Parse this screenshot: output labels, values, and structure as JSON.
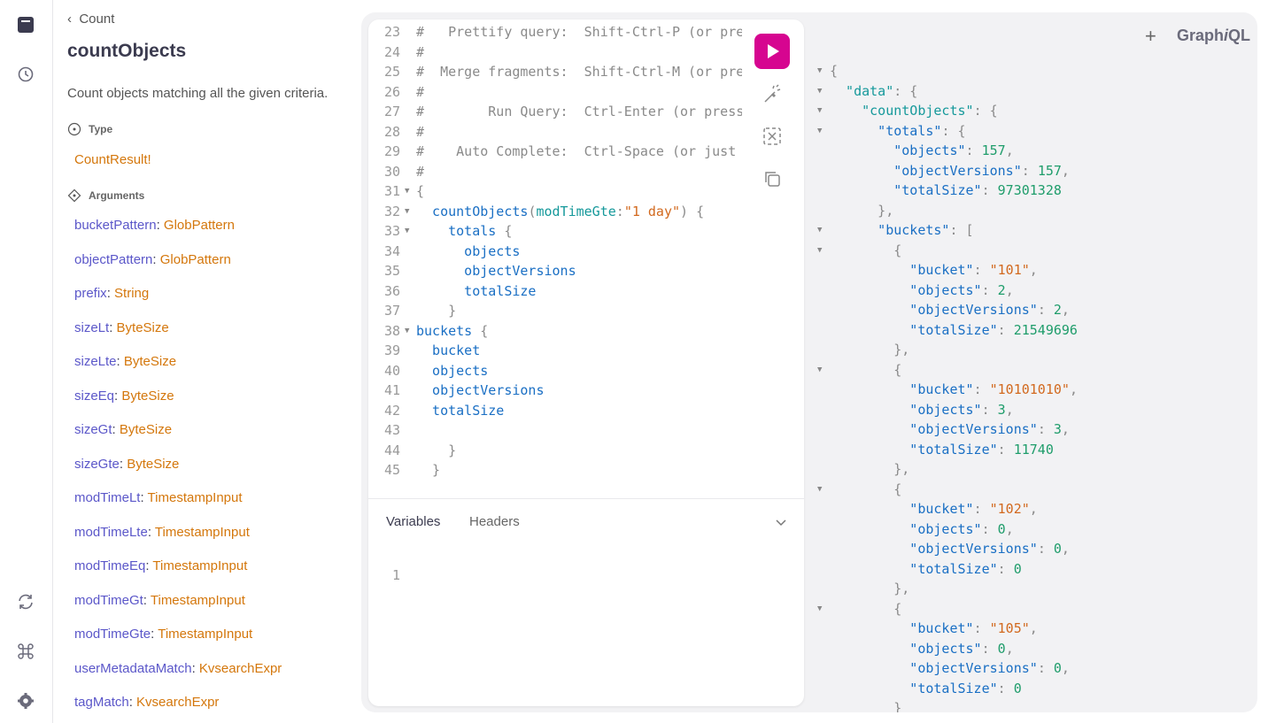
{
  "docs": {
    "back": "Count",
    "title": "countObjects",
    "description": "Count objects matching all the given criteria.",
    "type_heading": "Type",
    "type": "CountResult!",
    "arguments_heading": "Arguments",
    "arguments": [
      {
        "name": "bucketPattern",
        "type": "GlobPattern"
      },
      {
        "name": "objectPattern",
        "type": "GlobPattern"
      },
      {
        "name": "prefix",
        "type": "String"
      },
      {
        "name": "sizeLt",
        "type": "ByteSize"
      },
      {
        "name": "sizeLte",
        "type": "ByteSize"
      },
      {
        "name": "sizeEq",
        "type": "ByteSize"
      },
      {
        "name": "sizeGt",
        "type": "ByteSize"
      },
      {
        "name": "sizeGte",
        "type": "ByteSize"
      },
      {
        "name": "modTimeLt",
        "type": "TimestampInput"
      },
      {
        "name": "modTimeLte",
        "type": "TimestampInput"
      },
      {
        "name": "modTimeEq",
        "type": "TimestampInput"
      },
      {
        "name": "modTimeGt",
        "type": "TimestampInput"
      },
      {
        "name": "modTimeGte",
        "type": "TimestampInput"
      },
      {
        "name": "userMetadataMatch",
        "type": "KvsearchExpr"
      },
      {
        "name": "tagMatch",
        "type": "KvsearchExpr"
      }
    ]
  },
  "header": {
    "add": "+",
    "brand": [
      "Graph",
      "i",
      "QL"
    ]
  },
  "editor": {
    "lines": [
      {
        "number": 23,
        "fold": false,
        "tokens": [
          [
            "#   Prettify query:  Shift-Ctrl-P (or pre",
            "#8a8a8a"
          ]
        ]
      },
      {
        "number": 24,
        "fold": false,
        "tokens": [
          [
            "#",
            "#8a8a8a"
          ]
        ]
      },
      {
        "number": 25,
        "fold": false,
        "tokens": [
          [
            "#  Merge fragments:  Shift-Ctrl-M (or pre",
            "#8a8a8a"
          ]
        ]
      },
      {
        "number": 26,
        "fold": false,
        "tokens": [
          [
            "#",
            "#8a8a8a"
          ]
        ]
      },
      {
        "number": 27,
        "fold": false,
        "tokens": [
          [
            "#        Run Query:  Ctrl-Enter (or press",
            "#8a8a8a"
          ]
        ]
      },
      {
        "number": 28,
        "fold": false,
        "tokens": [
          [
            "#",
            "#8a8a8a"
          ]
        ]
      },
      {
        "number": 29,
        "fold": false,
        "tokens": [
          [
            "#    Auto Complete:  Ctrl-Space (or just",
            "#8a8a8a"
          ]
        ]
      },
      {
        "number": 30,
        "fold": false,
        "tokens": [
          [
            "#",
            "#8a8a8a"
          ]
        ]
      },
      {
        "number": 31,
        "fold": true,
        "tokens": [
          [
            "{",
            "#8a8a8a"
          ]
        ]
      },
      {
        "number": 32,
        "fold": true,
        "tokens": [
          [
            "  countObjects",
            "#1a6fc4"
          ],
          [
            "(",
            "#8a8a8a"
          ],
          [
            "modTimeGte",
            "#16999b"
          ],
          [
            ":",
            "#8a8a8a"
          ],
          [
            "\"1 day\"",
            "#d2691e"
          ],
          [
            ") {",
            "#8a8a8a"
          ]
        ]
      },
      {
        "number": 33,
        "fold": true,
        "tokens": [
          [
            "    totals",
            "#1a6fc4"
          ],
          [
            " {",
            "#8a8a8a"
          ]
        ]
      },
      {
        "number": 34,
        "fold": false,
        "tokens": [
          [
            "      objects",
            "#1a6fc4"
          ]
        ]
      },
      {
        "number": 35,
        "fold": false,
        "tokens": [
          [
            "      objectVersions",
            "#1a6fc4"
          ]
        ]
      },
      {
        "number": 36,
        "fold": false,
        "tokens": [
          [
            "      totalSize",
            "#1a6fc4"
          ]
        ]
      },
      {
        "number": 37,
        "fold": false,
        "tokens": [
          [
            "    }",
            "#8a8a8a"
          ]
        ]
      },
      {
        "number": 38,
        "fold": true,
        "tokens": [
          [
            "buckets",
            "#1a6fc4"
          ],
          [
            " {",
            "#8a8a8a"
          ]
        ]
      },
      {
        "number": 39,
        "fold": false,
        "tokens": [
          [
            "  bucket",
            "#1a6fc4"
          ]
        ]
      },
      {
        "number": 40,
        "fold": false,
        "tokens": [
          [
            "  objects",
            "#1a6fc4"
          ]
        ]
      },
      {
        "number": 41,
        "fold": false,
        "tokens": [
          [
            "  objectVersions",
            "#1a6fc4"
          ]
        ]
      },
      {
        "number": 42,
        "fold": false,
        "tokens": [
          [
            "  totalSize",
            "#1a6fc4"
          ]
        ]
      },
      {
        "number": 43,
        "fold": false,
        "tokens": []
      },
      {
        "number": 44,
        "fold": false,
        "tokens": [
          [
            "    }",
            "#8a8a8a"
          ]
        ]
      },
      {
        "number": 45,
        "fold": false,
        "tokens": [
          [
            "  }",
            "#8a8a8a"
          ]
        ]
      }
    ]
  },
  "variables": {
    "tabs": [
      "Variables",
      "Headers"
    ],
    "lines": [
      1
    ]
  },
  "result": {
    "lines": [
      {
        "fold": true,
        "tokens": [
          [
            "{",
            "#8a8a8a"
          ]
        ]
      },
      {
        "fold": true,
        "tokens": [
          [
            "  \"data\"",
            "#16999b"
          ],
          [
            ": {",
            "#8a8a8a"
          ]
        ]
      },
      {
        "fold": true,
        "tokens": [
          [
            "    \"countObjects\"",
            "#16999b"
          ],
          [
            ": {",
            "#8a8a8a"
          ]
        ]
      },
      {
        "fold": true,
        "tokens": [
          [
            "      \"totals\"",
            "#1a6fc4"
          ],
          [
            ": {",
            "#8a8a8a"
          ]
        ]
      },
      {
        "fold": false,
        "tokens": [
          [
            "        \"objects\"",
            "#1a6fc4"
          ],
          [
            ": ",
            "#8a8a8a"
          ],
          [
            "157",
            "#1f9d6b"
          ],
          [
            ",",
            "#8a8a8a"
          ]
        ]
      },
      {
        "fold": false,
        "tokens": [
          [
            "        \"objectVersions\"",
            "#1a6fc4"
          ],
          [
            ": ",
            "#8a8a8a"
          ],
          [
            "157",
            "#1f9d6b"
          ],
          [
            ",",
            "#8a8a8a"
          ]
        ]
      },
      {
        "fold": false,
        "tokens": [
          [
            "        \"totalSize\"",
            "#1a6fc4"
          ],
          [
            ": ",
            "#8a8a8a"
          ],
          [
            "97301328",
            "#1f9d6b"
          ]
        ]
      },
      {
        "fold": false,
        "tokens": [
          [
            "      },",
            "#8a8a8a"
          ]
        ]
      },
      {
        "fold": true,
        "tokens": [
          [
            "      \"buckets\"",
            "#1a6fc4"
          ],
          [
            ": [",
            "#8a8a8a"
          ]
        ]
      },
      {
        "fold": true,
        "tokens": [
          [
            "        {",
            "#8a8a8a"
          ]
        ]
      },
      {
        "fold": false,
        "tokens": [
          [
            "          \"bucket\"",
            "#1a6fc4"
          ],
          [
            ": ",
            "#8a8a8a"
          ],
          [
            "\"101\"",
            "#d2691e"
          ],
          [
            ",",
            "#8a8a8a"
          ]
        ]
      },
      {
        "fold": false,
        "tokens": [
          [
            "          \"objects\"",
            "#1a6fc4"
          ],
          [
            ": ",
            "#8a8a8a"
          ],
          [
            "2",
            "#1f9d6b"
          ],
          [
            ",",
            "#8a8a8a"
          ]
        ]
      },
      {
        "fold": false,
        "tokens": [
          [
            "          \"objectVersions\"",
            "#1a6fc4"
          ],
          [
            ": ",
            "#8a8a8a"
          ],
          [
            "2",
            "#1f9d6b"
          ],
          [
            ",",
            "#8a8a8a"
          ]
        ]
      },
      {
        "fold": false,
        "tokens": [
          [
            "          \"totalSize\"",
            "#1a6fc4"
          ],
          [
            ": ",
            "#8a8a8a"
          ],
          [
            "21549696",
            "#1f9d6b"
          ]
        ]
      },
      {
        "fold": false,
        "tokens": [
          [
            "        },",
            "#8a8a8a"
          ]
        ]
      },
      {
        "fold": true,
        "tokens": [
          [
            "        {",
            "#8a8a8a"
          ]
        ]
      },
      {
        "fold": false,
        "tokens": [
          [
            "          \"bucket\"",
            "#1a6fc4"
          ],
          [
            ": ",
            "#8a8a8a"
          ],
          [
            "\"10101010\"",
            "#d2691e"
          ],
          [
            ",",
            "#8a8a8a"
          ]
        ]
      },
      {
        "fold": false,
        "tokens": [
          [
            "          \"objects\"",
            "#1a6fc4"
          ],
          [
            ": ",
            "#8a8a8a"
          ],
          [
            "3",
            "#1f9d6b"
          ],
          [
            ",",
            "#8a8a8a"
          ]
        ]
      },
      {
        "fold": false,
        "tokens": [
          [
            "          \"objectVersions\"",
            "#1a6fc4"
          ],
          [
            ": ",
            "#8a8a8a"
          ],
          [
            "3",
            "#1f9d6b"
          ],
          [
            ",",
            "#8a8a8a"
          ]
        ]
      },
      {
        "fold": false,
        "tokens": [
          [
            "          \"totalSize\"",
            "#1a6fc4"
          ],
          [
            ": ",
            "#8a8a8a"
          ],
          [
            "11740",
            "#1f9d6b"
          ]
        ]
      },
      {
        "fold": false,
        "tokens": [
          [
            "        },",
            "#8a8a8a"
          ]
        ]
      },
      {
        "fold": true,
        "tokens": [
          [
            "        {",
            "#8a8a8a"
          ]
        ]
      },
      {
        "fold": false,
        "tokens": [
          [
            "          \"bucket\"",
            "#1a6fc4"
          ],
          [
            ": ",
            "#8a8a8a"
          ],
          [
            "\"102\"",
            "#d2691e"
          ],
          [
            ",",
            "#8a8a8a"
          ]
        ]
      },
      {
        "fold": false,
        "tokens": [
          [
            "          \"objects\"",
            "#1a6fc4"
          ],
          [
            ": ",
            "#8a8a8a"
          ],
          [
            "0",
            "#1f9d6b"
          ],
          [
            ",",
            "#8a8a8a"
          ]
        ]
      },
      {
        "fold": false,
        "tokens": [
          [
            "          \"objectVersions\"",
            "#1a6fc4"
          ],
          [
            ": ",
            "#8a8a8a"
          ],
          [
            "0",
            "#1f9d6b"
          ],
          [
            ",",
            "#8a8a8a"
          ]
        ]
      },
      {
        "fold": false,
        "tokens": [
          [
            "          \"totalSize\"",
            "#1a6fc4"
          ],
          [
            ": ",
            "#8a8a8a"
          ],
          [
            "0",
            "#1f9d6b"
          ]
        ]
      },
      {
        "fold": false,
        "tokens": [
          [
            "        },",
            "#8a8a8a"
          ]
        ]
      },
      {
        "fold": true,
        "tokens": [
          [
            "        {",
            "#8a8a8a"
          ]
        ]
      },
      {
        "fold": false,
        "tokens": [
          [
            "          \"bucket\"",
            "#1a6fc4"
          ],
          [
            ": ",
            "#8a8a8a"
          ],
          [
            "\"105\"",
            "#d2691e"
          ],
          [
            ",",
            "#8a8a8a"
          ]
        ]
      },
      {
        "fold": false,
        "tokens": [
          [
            "          \"objects\"",
            "#1a6fc4"
          ],
          [
            ": ",
            "#8a8a8a"
          ],
          [
            "0",
            "#1f9d6b"
          ],
          [
            ",",
            "#8a8a8a"
          ]
        ]
      },
      {
        "fold": false,
        "tokens": [
          [
            "          \"objectVersions\"",
            "#1a6fc4"
          ],
          [
            ": ",
            "#8a8a8a"
          ],
          [
            "0",
            "#1f9d6b"
          ],
          [
            ",",
            "#8a8a8a"
          ]
        ]
      },
      {
        "fold": false,
        "tokens": [
          [
            "          \"totalSize\"",
            "#1a6fc4"
          ],
          [
            ": ",
            "#8a8a8a"
          ],
          [
            "0",
            "#1f9d6b"
          ]
        ]
      },
      {
        "fold": false,
        "tokens": [
          [
            "        }",
            "#8a8a8a"
          ]
        ]
      }
    ]
  }
}
